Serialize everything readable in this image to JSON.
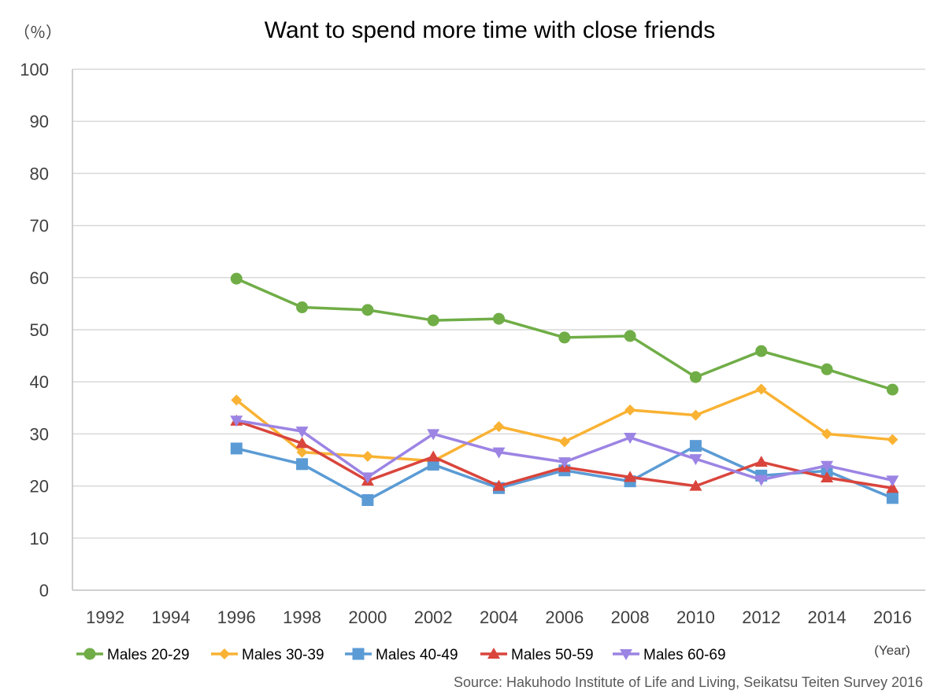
{
  "chart_data": {
    "type": "line",
    "title": "Want to spend more time with close friends",
    "ylabel": "（％）",
    "xlabel": "(Year)",
    "source": "Source: Hakuhodo Institute of Life and Living, Seikatsu Teiten Survey 2016",
    "ylim": [
      0,
      100
    ],
    "yticks": [
      0,
      10,
      20,
      30,
      40,
      50,
      60,
      70,
      80,
      90,
      100
    ],
    "categories": [
      "1992",
      "1994",
      "1996",
      "1998",
      "2000",
      "2002",
      "2004",
      "2006",
      "2008",
      "2010",
      "2012",
      "2014",
      "2016"
    ],
    "grid": true,
    "legend_position": "bottom",
    "series": [
      {
        "name": "Males 20-29",
        "color": "#70ad47",
        "marker": "circle",
        "values": [
          null,
          null,
          59.8,
          54.3,
          53.8,
          51.8,
          52.1,
          48.5,
          48.8,
          40.9,
          45.9,
          42.4,
          38.5
        ]
      },
      {
        "name": "Males 30-39",
        "color": "#f9b233",
        "marker": "diamond",
        "values": [
          null,
          null,
          36.5,
          26.5,
          25.7,
          24.8,
          31.4,
          28.5,
          34.6,
          33.6,
          38.6,
          30.0,
          28.9
        ]
      },
      {
        "name": "Males 40-49",
        "color": "#5b9bd5",
        "marker": "square",
        "values": [
          null,
          null,
          27.2,
          24.2,
          17.3,
          24.1,
          19.6,
          23.0,
          20.9,
          27.7,
          22.0,
          22.9,
          17.7
        ]
      },
      {
        "name": "Males 50-59",
        "color": "#d9453c",
        "marker": "triangle-up",
        "values": [
          null,
          null,
          32.5,
          28.2,
          21.0,
          25.6,
          20.0,
          23.6,
          21.7,
          20.0,
          24.6,
          21.6,
          19.6
        ]
      },
      {
        "name": "Males 60-69",
        "color": "#9c84e4",
        "marker": "triangle-down",
        "values": [
          null,
          null,
          32.6,
          30.5,
          21.7,
          30.0,
          26.5,
          24.6,
          29.3,
          25.2,
          21.2,
          23.9,
          21.1
        ]
      }
    ]
  }
}
